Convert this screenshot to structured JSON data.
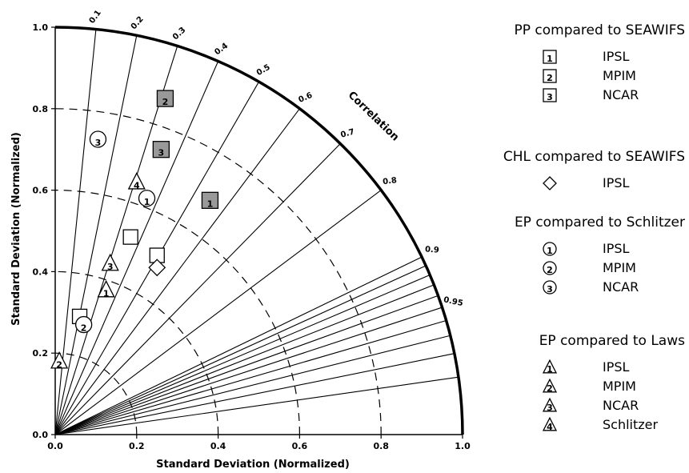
{
  "chart_data": {
    "type": "scatter",
    "subtype": "taylor-diagram-quadrant",
    "xlabel": "Standard Deviation (Normalized)",
    "ylabel": "Standard Deviation (Normalized)",
    "arc_label": "Correlation",
    "xlim": [
      0,
      1.0
    ],
    "ylim": [
      0,
      1.0
    ],
    "axis_ticks": [
      "0.0",
      "0.2",
      "0.4",
      "0.6",
      "0.8",
      "1.0"
    ],
    "correlation_lines": [
      0.1,
      0.2,
      0.3,
      0.4,
      0.5,
      0.6,
      0.7,
      0.8,
      0.9,
      0.91,
      0.92,
      0.93,
      0.94,
      0.95,
      0.96,
      0.97,
      0.98,
      0.99
    ],
    "correlation_labels": [
      "0.1",
      "0.2",
      "0.3",
      "0.4",
      "0.5",
      "0.6",
      "0.7",
      "0.8",
      "0.9",
      "0.95"
    ],
    "dashed_arcs": [
      0.2,
      0.4,
      0.6,
      0.8
    ],
    "groups": [
      {
        "title": "PP compared to SEAWIFS",
        "marker": "square-filled",
        "color": "#999999",
        "entries": [
          {
            "id": "1",
            "name": "IPSL",
            "x": 0.38,
            "y": 0.575
          },
          {
            "id": "2",
            "name": "MPIM",
            "x": 0.27,
            "y": 0.825
          },
          {
            "id": "3",
            "name": "NCAR",
            "x": 0.26,
            "y": 0.7
          }
        ]
      },
      {
        "title": "CHL compared to SEAWIFS",
        "marker": "diamond",
        "color": "#000000",
        "entries": [
          {
            "id": "",
            "name": "IPSL",
            "x": 0.25,
            "y": 0.41
          }
        ]
      },
      {
        "title": "EP compared to Schlitzer",
        "marker": "circle",
        "color": "#000000",
        "entries": [
          {
            "id": "1",
            "name": "IPSL",
            "x": 0.225,
            "y": 0.58
          },
          {
            "id": "2",
            "name": "MPIM",
            "x": 0.07,
            "y": 0.27
          },
          {
            "id": "3",
            "name": "NCAR",
            "x": 0.105,
            "y": 0.725
          }
        ]
      },
      {
        "title": "EP compared to Laws",
        "marker": "triangle",
        "color": "#000000",
        "entries": [
          {
            "id": "1",
            "name": "IPSL",
            "x": 0.125,
            "y": 0.355
          },
          {
            "id": "2",
            "name": "MPIM",
            "x": 0.01,
            "y": 0.18
          },
          {
            "id": "3",
            "name": "NCAR",
            "x": 0.135,
            "y": 0.42
          },
          {
            "id": "4",
            "name": "Schlitzer",
            "x": 0.2,
            "y": 0.62
          }
        ]
      }
    ],
    "unlabeled_squares": [
      {
        "x": 0.06,
        "y": 0.29
      },
      {
        "x": 0.185,
        "y": 0.485
      },
      {
        "x": 0.25,
        "y": 0.44
      }
    ]
  }
}
